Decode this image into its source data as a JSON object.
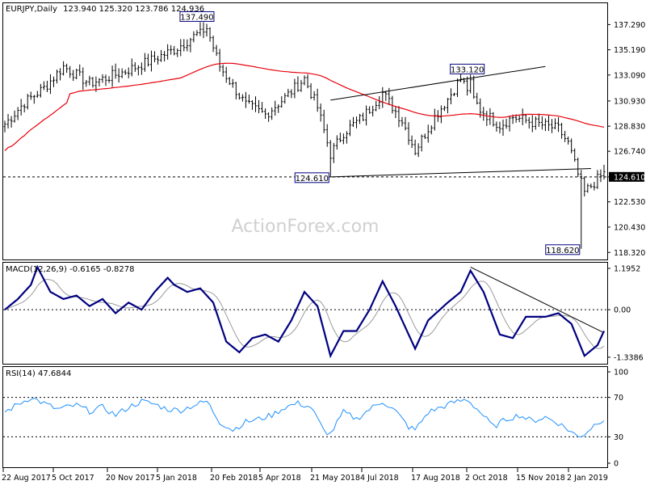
{
  "header": {
    "symbol_label": "EURJPY,Daily",
    "ohlc": "123.940 125.320 123.786 124.936"
  },
  "watermark": "ActionForex.com",
  "colors": {
    "candle": "#000000",
    "ma": "#e8000b",
    "macd_main": "#000080",
    "macd_signal": "#9a9a9a",
    "rsi": "#1e90ff",
    "trendline": "#000000",
    "label_border": "#000080"
  },
  "chart_data": [
    {
      "type": "candlestick",
      "panel": "price",
      "ylim": [
        117.8,
        139.0
      ],
      "y_ticks": [
        "137.290",
        "135.190",
        "133.090",
        "130.930",
        "128.830",
        "126.740",
        "124.610",
        "122.530",
        "120.430",
        "118.320"
      ],
      "current_price_label": "124.610",
      "x_ticks": [
        "22 Aug 2017",
        "5 Oct 2017",
        "20 Nov 2017",
        "5 Jan 2018",
        "20 Feb 2018",
        "5 Apr 2018",
        "21 May 2018",
        "4 Jul 2018",
        "17 Aug 2018",
        "2 Oct 2018",
        "15 Nov 2018",
        "2 Jan 2019"
      ],
      "n_bars": 185,
      "closes_keyframes": [
        [
          0,
          129.0
        ],
        [
          6,
          130.8
        ],
        [
          12,
          132.0
        ],
        [
          18,
          133.8
        ],
        [
          26,
          132.4
        ],
        [
          36,
          133.3
        ],
        [
          44,
          134.2
        ],
        [
          52,
          135.2
        ],
        [
          58,
          136.3
        ],
        [
          62,
          137.0
        ],
        [
          66,
          133.8
        ],
        [
          74,
          130.6
        ],
        [
          80,
          129.8
        ],
        [
          86,
          131.2
        ],
        [
          92,
          132.8
        ],
        [
          96,
          130.4
        ],
        [
          100,
          126.5
        ],
        [
          104,
          128.3
        ],
        [
          110,
          129.6
        ],
        [
          116,
          131.6
        ],
        [
          122,
          129.3
        ],
        [
          126,
          126.8
        ],
        [
          132,
          129.6
        ],
        [
          136,
          131.1
        ],
        [
          140,
          132.8
        ],
        [
          146,
          130.2
        ],
        [
          152,
          128.9
        ],
        [
          156,
          129.6
        ],
        [
          164,
          129.0
        ],
        [
          170,
          128.6
        ],
        [
          173,
          127.4
        ],
        [
          176,
          124.8
        ],
        [
          178,
          123.3
        ],
        [
          182,
          124.4
        ],
        [
          184,
          124.9
        ]
      ],
      "annotations": [
        {
          "text": "137.490",
          "bar": 60,
          "price": 137.49,
          "position": "above"
        },
        {
          "text": "133.120",
          "bar": 143,
          "price": 133.12,
          "position": "above"
        },
        {
          "text": "124.610",
          "bar": 100,
          "price": 124.61,
          "position": "below"
        },
        {
          "text": "118.620",
          "bar": 177,
          "price": 118.62,
          "position": "below"
        }
      ],
      "trendlines": [
        {
          "from": [
            100,
            131.0
          ],
          "to": [
            166,
            133.8
          ]
        },
        {
          "from": [
            100,
            124.61
          ],
          "to": [
            180,
            125.3
          ]
        }
      ],
      "horizontal_line": 124.61,
      "moving_average": {
        "window": 55
      }
    },
    {
      "type": "line",
      "panel": "macd",
      "title": "MACD(12,26,9) -0.6165 -0.8278",
      "ylim": [
        -1.5,
        1.3
      ],
      "y_ticks": [
        "1.1952",
        "0.00",
        "-1.3386"
      ],
      "zero_line": 0,
      "series": [
        {
          "name": "MACD",
          "keyframes": [
            [
              0,
              0.0
            ],
            [
              4,
              0.3
            ],
            [
              8,
              0.7
            ],
            [
              10,
              1.2
            ],
            [
              14,
              0.5
            ],
            [
              18,
              0.3
            ],
            [
              22,
              0.4
            ],
            [
              26,
              0.1
            ],
            [
              30,
              0.3
            ],
            [
              34,
              -0.1
            ],
            [
              38,
              0.2
            ],
            [
              42,
              0.0
            ],
            [
              46,
              0.5
            ],
            [
              50,
              0.9
            ],
            [
              52,
              0.7
            ],
            [
              56,
              0.5
            ],
            [
              60,
              0.6
            ],
            [
              64,
              0.2
            ],
            [
              68,
              -0.9
            ],
            [
              72,
              -1.2
            ],
            [
              76,
              -0.8
            ],
            [
              80,
              -0.7
            ],
            [
              84,
              -0.9
            ],
            [
              88,
              -0.3
            ],
            [
              92,
              0.5
            ],
            [
              96,
              0.1
            ],
            [
              100,
              -1.3
            ],
            [
              104,
              -0.6
            ],
            [
              108,
              -0.6
            ],
            [
              112,
              0.0
            ],
            [
              116,
              0.8
            ],
            [
              120,
              0.1
            ],
            [
              126,
              -1.1
            ],
            [
              130,
              -0.3
            ],
            [
              136,
              0.2
            ],
            [
              140,
              0.5
            ],
            [
              143,
              1.1
            ],
            [
              147,
              0.5
            ],
            [
              152,
              -0.7
            ],
            [
              156,
              -0.8
            ],
            [
              160,
              -0.2
            ],
            [
              166,
              -0.2
            ],
            [
              170,
              -0.1
            ],
            [
              174,
              -0.4
            ],
            [
              178,
              -1.3
            ],
            [
              182,
              -1.0
            ],
            [
              184,
              -0.6
            ]
          ]
        },
        {
          "name": "Signal",
          "lag": 3
        }
      ],
      "trendline": {
        "from": [
          143,
          1.2
        ],
        "to": [
          184,
          -0.65
        ]
      }
    },
    {
      "type": "line",
      "panel": "rsi",
      "title": "RSI(14) 47.6844",
      "ylim": [
        0,
        100
      ],
      "y_ticks": [
        "100",
        "70",
        "30",
        "0"
      ],
      "levels": [
        70,
        30
      ],
      "series": [
        {
          "name": "RSI",
          "keyframes": [
            [
              0,
              55
            ],
            [
              4,
              63
            ],
            [
              8,
              70
            ],
            [
              12,
              64
            ],
            [
              16,
              58
            ],
            [
              22,
              62
            ],
            [
              26,
              56
            ],
            [
              30,
              60
            ],
            [
              34,
              52
            ],
            [
              38,
              60
            ],
            [
              42,
              66
            ],
            [
              46,
              63
            ],
            [
              50,
              58
            ],
            [
              54,
              57
            ],
            [
              58,
              62
            ],
            [
              62,
              66
            ],
            [
              66,
              45
            ],
            [
              70,
              37
            ],
            [
              74,
              45
            ],
            [
              78,
              48
            ],
            [
              82,
              52
            ],
            [
              86,
              60
            ],
            [
              90,
              64
            ],
            [
              94,
              60
            ],
            [
              98,
              36
            ],
            [
              100,
              33
            ],
            [
              104,
              55
            ],
            [
              108,
              48
            ],
            [
              112,
              58
            ],
            [
              116,
              66
            ],
            [
              120,
              56
            ],
            [
              124,
              40
            ],
            [
              126,
              37
            ],
            [
              130,
              55
            ],
            [
              134,
              60
            ],
            [
              138,
              65
            ],
            [
              142,
              68
            ],
            [
              146,
              55
            ],
            [
              150,
              40
            ],
            [
              154,
              48
            ],
            [
              158,
              52
            ],
            [
              162,
              46
            ],
            [
              166,
              50
            ],
            [
              170,
              44
            ],
            [
              174,
              35
            ],
            [
              176,
              30
            ],
            [
              178,
              33
            ],
            [
              182,
              45
            ],
            [
              184,
              48
            ]
          ]
        }
      ]
    }
  ]
}
